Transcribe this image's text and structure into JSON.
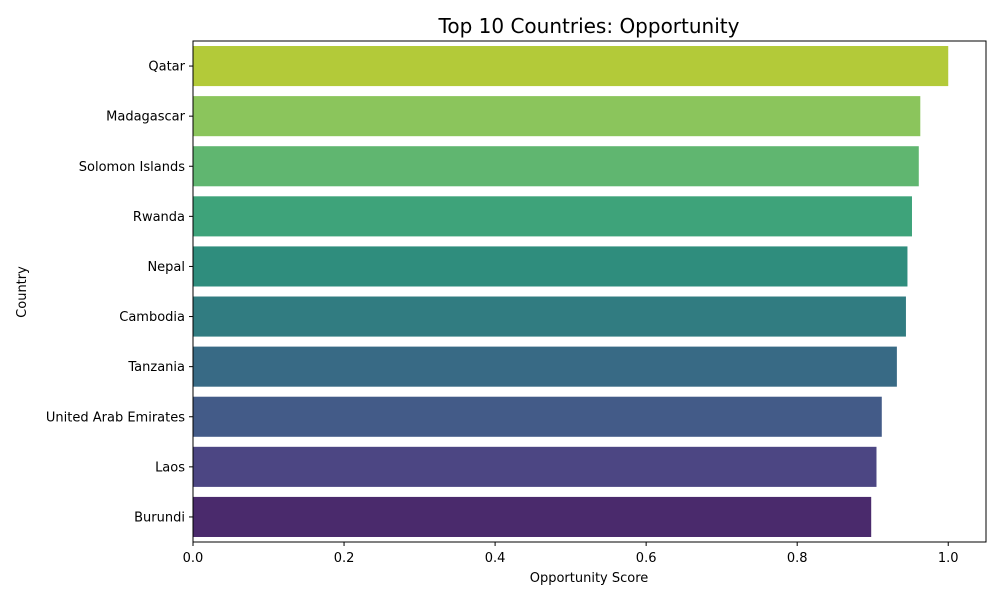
{
  "chart_data": {
    "type": "bar",
    "orientation": "horizontal",
    "title": "Top 10 Countries: Opportunity",
    "xlabel": "Opportunity Score",
    "ylabel": "Country",
    "xlim": [
      0,
      1.05
    ],
    "xticks": [
      0.0,
      0.2,
      0.4,
      0.6,
      0.8,
      1.0
    ],
    "xtick_labels": [
      "0.0",
      "0.2",
      "0.4",
      "0.6",
      "0.8",
      "1.0"
    ],
    "grid": false,
    "legend": "none",
    "categories": [
      "Qatar",
      "Madagascar",
      "Solomon Islands",
      "Rwanda",
      "Nepal",
      "Cambodia",
      "Tanzania",
      "United Arab Emirates",
      "Laos",
      "Burundi"
    ],
    "values": [
      1.0,
      0.963,
      0.961,
      0.952,
      0.946,
      0.944,
      0.932,
      0.912,
      0.905,
      0.898
    ],
    "colors": [
      "#b3ca39",
      "#8bc55c",
      "#60b670",
      "#3ea37a",
      "#2f8d7d",
      "#317c81",
      "#386a85",
      "#435b88",
      "#4c4683",
      "#4a2a6c"
    ]
  }
}
